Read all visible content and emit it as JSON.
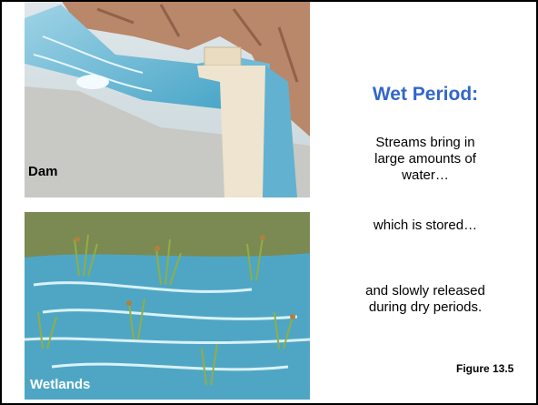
{
  "images": [
    {
      "caption": "Dam"
    },
    {
      "caption": "Wetlands"
    }
  ],
  "heading": "Wet Period:",
  "paragraphs": [
    {
      "lines": [
        "Streams bring in",
        "large amounts of",
        "water…"
      ]
    },
    {
      "lines": [
        "which is stored…"
      ]
    },
    {
      "lines": [
        "and slowly released",
        "during dry periods."
      ]
    }
  ],
  "figure_label": "Figure 13.5"
}
